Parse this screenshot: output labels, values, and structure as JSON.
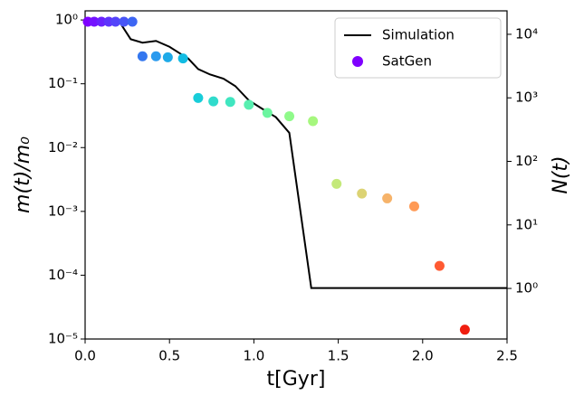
{
  "chart_data": {
    "type": "log_mixed",
    "x_label": "t[Gyr]",
    "y_label": "m(t)/m₀",
    "y2_label": "N(t)",
    "xlim": [
      0,
      2.5
    ],
    "xticks": [
      {
        "value": 0,
        "label": "0.0"
      },
      0.5,
      {
        "value": 1,
        "label": "1.0"
      },
      1.5,
      {
        "value": 2,
        "label": "2.0"
      },
      2.5
    ],
    "ylim": [
      1e-05,
      1.39
    ],
    "ylog": true,
    "yticks": [
      {
        "value": 1e-05,
        "label": "10⁻⁵"
      },
      {
        "value": 0.0001,
        "label": "10⁻⁴"
      },
      {
        "value": 0.001,
        "label": "10⁻³"
      },
      {
        "value": 0.01,
        "label": "10⁻²"
      },
      {
        "value": 0.1,
        "label": "10⁻¹"
      },
      {
        "value": 1,
        "label": "10⁰"
      }
    ],
    "y2lim": [
      0.16,
      23400
    ],
    "y2log": true,
    "y2ticks": [
      {
        "value": 1,
        "label": "10⁰"
      },
      {
        "value": 10,
        "label": "10¹"
      },
      {
        "value": 100,
        "label": "10²"
      },
      {
        "value": 1000,
        "label": "10³"
      },
      {
        "value": 10000,
        "label": "10⁴"
      }
    ],
    "legend": "upper right",
    "series": [
      {
        "name": "Simulation",
        "kind": "line",
        "color": "#000000",
        "x": [
          0,
          0.11,
          0.17,
          0.21,
          0.27,
          0.34,
          0.42,
          0.5,
          0.57,
          0.61,
          0.67,
          0.74,
          0.82,
          0.89,
          0.97,
          1.04,
          1.13,
          1.21,
          1.34,
          2.5
        ],
        "values": [
          1.0,
          1.03,
          1.0,
          0.88,
          0.5,
          0.44,
          0.47,
          0.38,
          0.29,
          0.25,
          0.17,
          0.14,
          0.12,
          0.092,
          0.055,
          0.042,
          0.03,
          0.017,
          6.3e-05,
          6.3e-05
        ]
      },
      {
        "name": "SatGen",
        "kind": "scatter",
        "color": "#7f00ff",
        "x": [
          0.016,
          0.054,
          0.097,
          0.14,
          0.18,
          0.23,
          0.28,
          0.34,
          0.42,
          0.49,
          0.58,
          0.67,
          0.76,
          0.86,
          0.97,
          1.08,
          1.21,
          1.35,
          1.49,
          1.64,
          1.79,
          1.95,
          2.1,
          2.25
        ],
        "values": [
          0.94,
          0.94,
          0.94,
          0.94,
          0.94,
          0.94,
          0.94,
          0.27,
          0.27,
          0.26,
          0.25,
          0.06,
          0.053,
          0.052,
          0.047,
          0.035,
          0.031,
          0.026,
          0.0027,
          0.0019,
          0.0016,
          0.0012,
          0.00014,
          1.4e-05
        ],
        "colors": [
          "#7f00ff",
          "#7412ff",
          "#6a22fe",
          "#5e34fc",
          "#5444fa",
          "#4856f7",
          "#3d66f3",
          "#3477ef",
          "#2a9aee",
          "#1eaae8",
          "#12bce3",
          "#18cdd9",
          "#30dbcc",
          "#40e6c0",
          "#58efb0",
          "#6cf5a0",
          "#8ffa8a",
          "#a6f77e",
          "#c4e97a",
          "#dcd374",
          "#f6b36a",
          "#ff9a55",
          "#ff5a32",
          "#f01e10"
        ]
      }
    ]
  }
}
